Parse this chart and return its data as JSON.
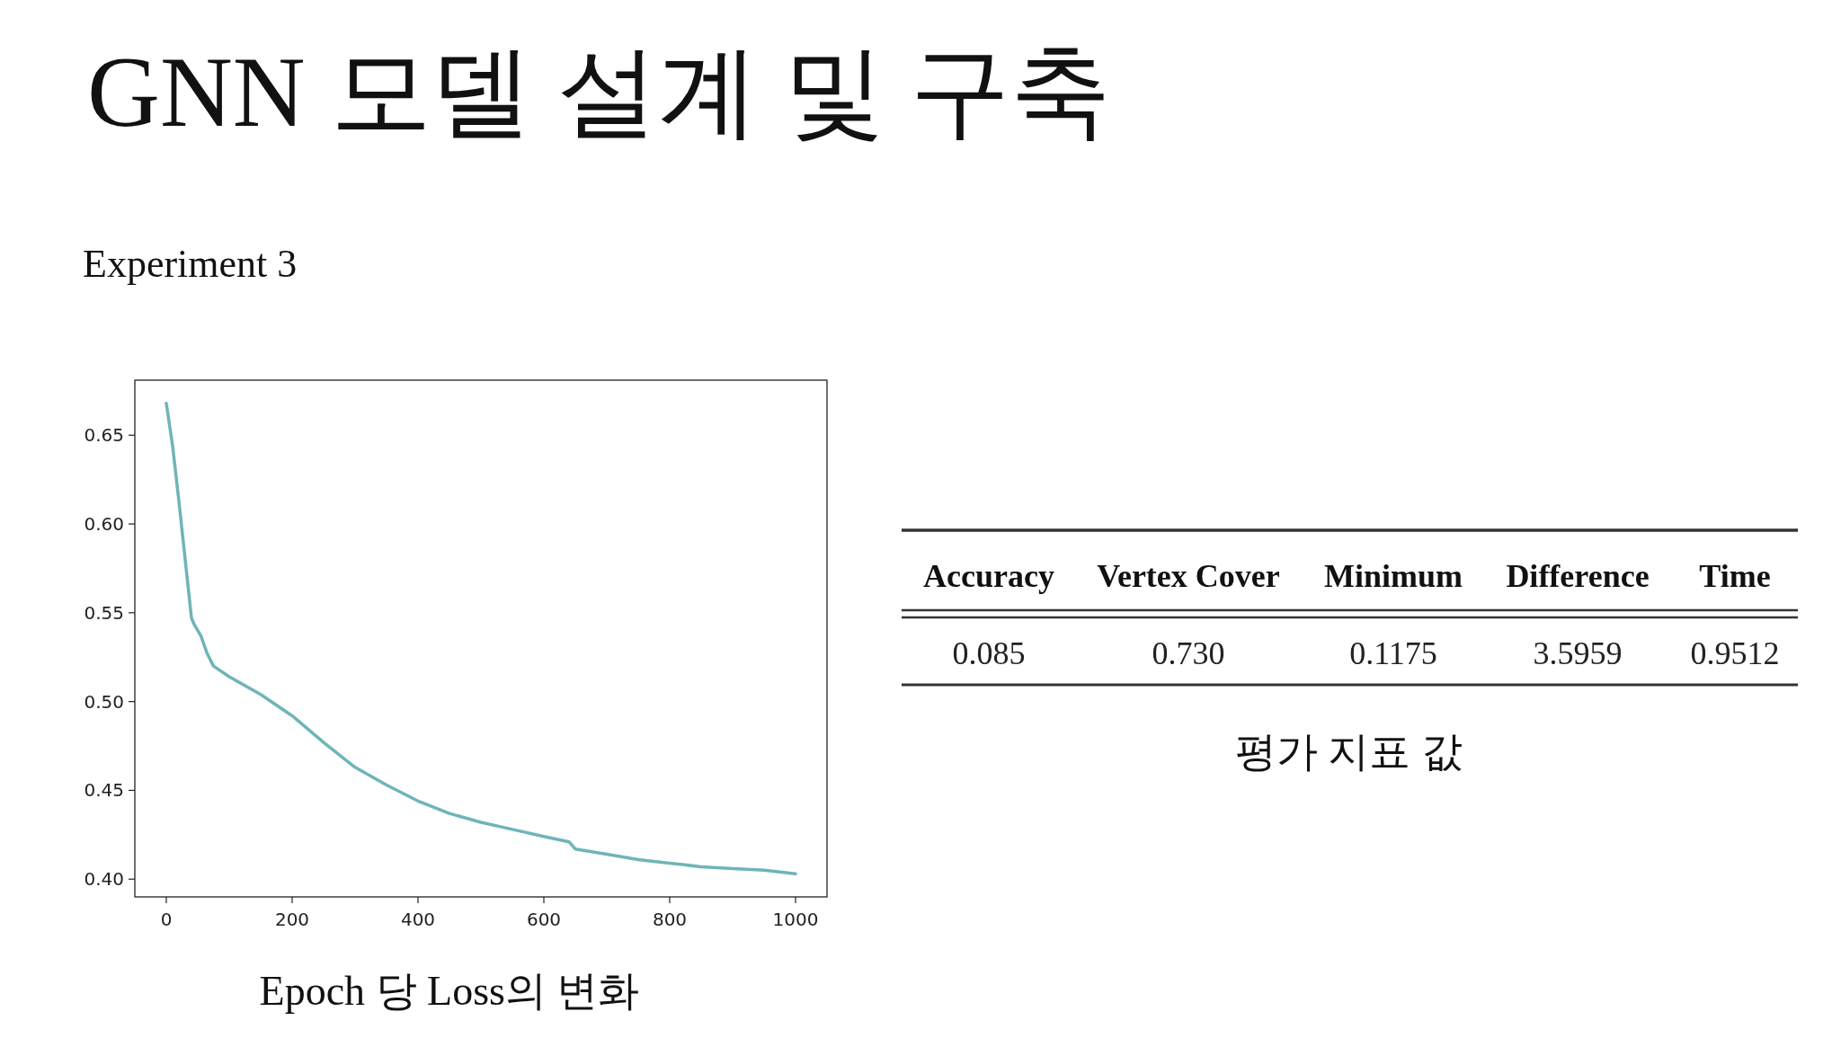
{
  "chart_data": [
    {
      "type": "line",
      "title": "GNN 모델 설계 및 구축",
      "subtitle": "Experiment 3",
      "xlabel": "Epoch 당 Loss의 변화",
      "x": [
        0,
        10,
        20,
        40,
        45,
        55,
        65,
        75,
        100,
        150,
        200,
        250,
        300,
        350,
        400,
        450,
        500,
        550,
        600,
        640,
        650,
        700,
        750,
        800,
        850,
        900,
        950,
        1000
      ],
      "series": [
        {
          "color": "#6fb4b8",
          "values": [
            0.668,
            0.644,
            0.613,
            0.547,
            0.543,
            0.537,
            0.527,
            0.52,
            0.514,
            0.504,
            0.492,
            0.477,
            0.463,
            0.453,
            0.444,
            0.437,
            0.432,
            0.428,
            0.424,
            0.421,
            0.417,
            0.414,
            0.411,
            0.409,
            0.407,
            0.406,
            0.405,
            0.403
          ]
        }
      ],
      "xlim": [
        -50,
        1050
      ],
      "ylim": [
        0.39,
        0.681
      ],
      "xticks": [
        0,
        200,
        400,
        600,
        800,
        1000
      ],
      "yticks": [
        {
          "value": 0.4,
          "label": "0.40"
        },
        {
          "value": 0.45,
          "label": "0.45"
        },
        {
          "value": 0.5,
          "label": "0.50"
        },
        {
          "value": 0.55,
          "label": "0.55"
        },
        {
          "value": 0.6,
          "label": "0.60"
        },
        {
          "value": 0.65,
          "label": "0.65"
        }
      ]
    },
    {
      "type": "other",
      "categories": [
        "Accuracy",
        "Vertex Cover",
        "Minimum",
        "Difference",
        "Time"
      ],
      "values": [
        0.085,
        0.73,
        0.1175,
        3.5959,
        0.9512
      ],
      "value_labels": [
        "0.085",
        "0.730",
        "0.1175",
        "3.5959",
        "0.9512"
      ],
      "annotations": [
        "평가 지표 값"
      ]
    }
  ]
}
